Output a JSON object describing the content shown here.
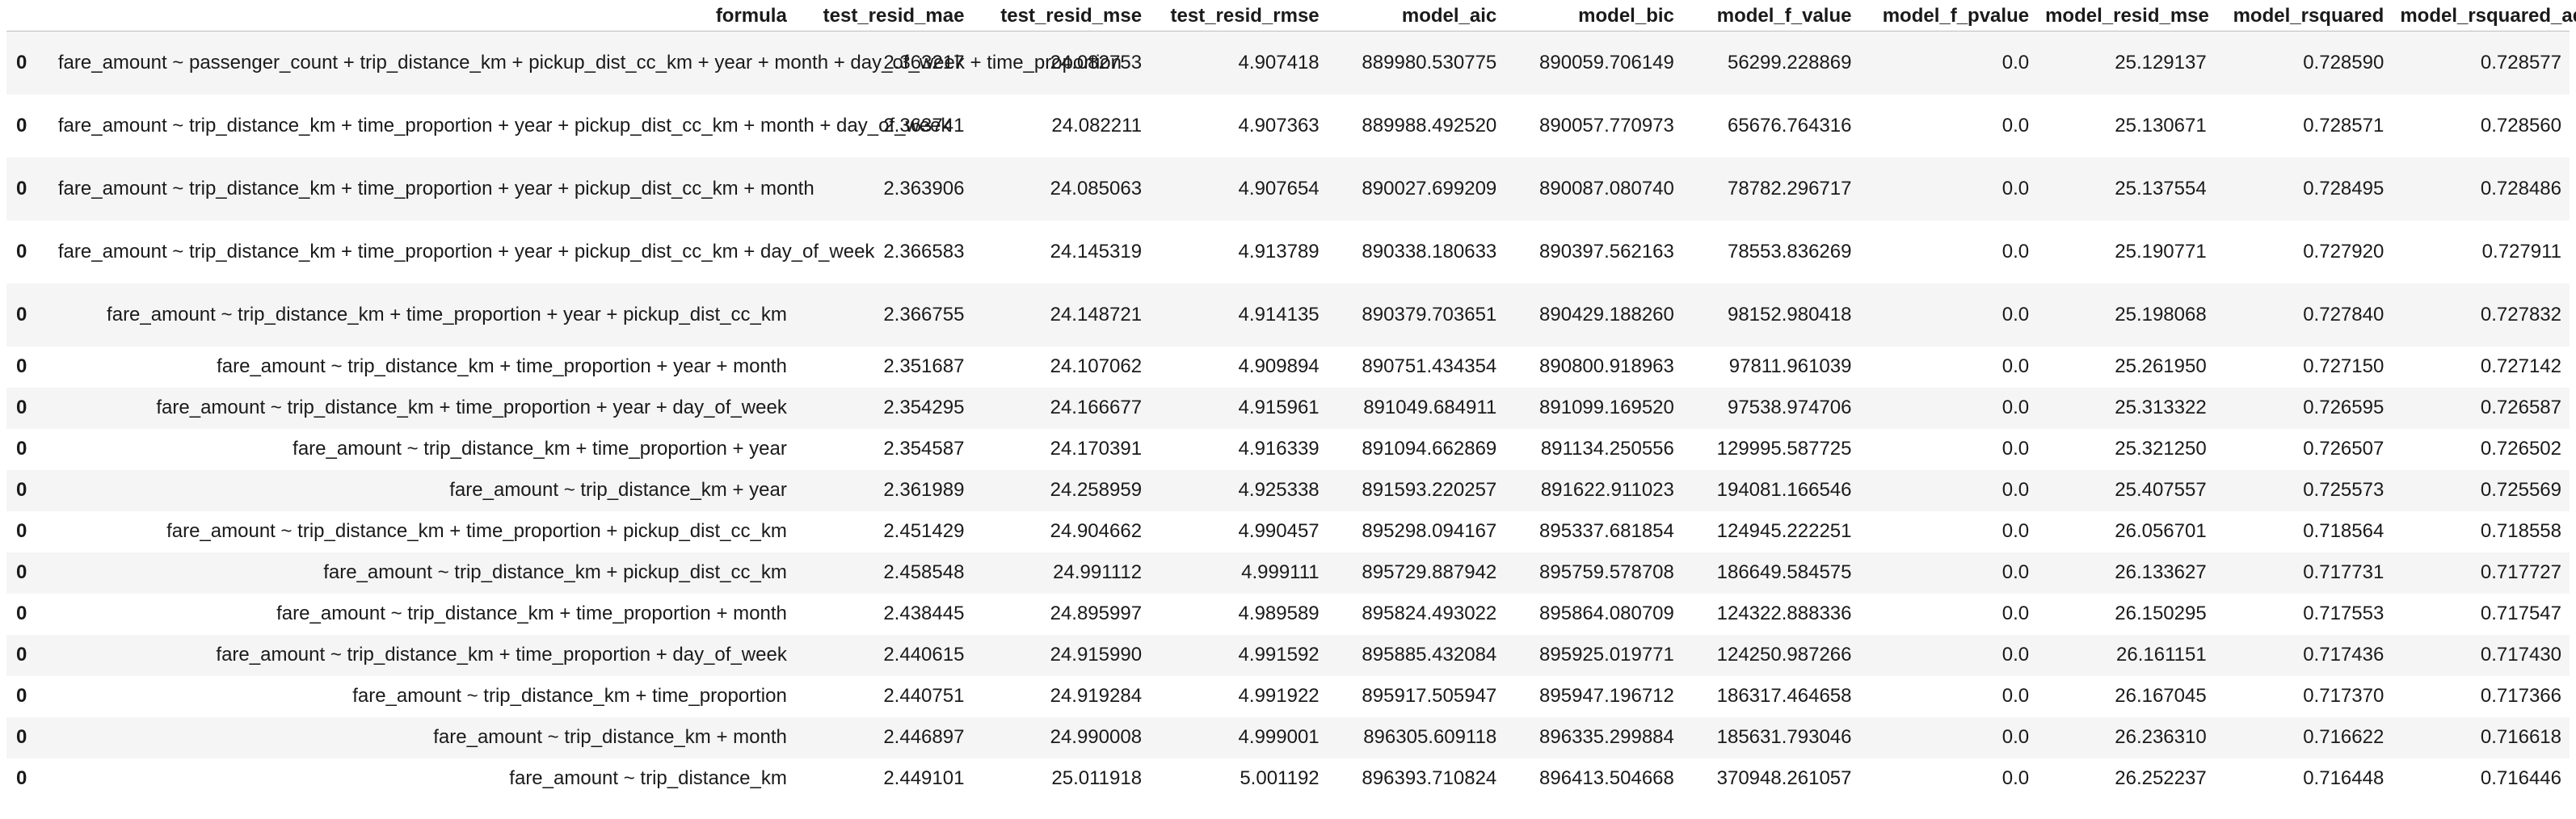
{
  "columns": [
    "",
    "formula",
    "test_resid_mae",
    "test_resid_mse",
    "test_resid_rmse",
    "model_aic",
    "model_bic",
    "model_f_value",
    "model_f_pvalue",
    "model_resid_mse",
    "model_rsquared",
    "model_rsquared_adj"
  ],
  "rows": [
    {
      "index": "0",
      "formula": "fare_amount ~ passenger_count + trip_distance_km + pickup_dist_cc_km + year + month + day_of_week + time_proportion",
      "test_resid_mae": "2.363217",
      "test_resid_mse": "24.082753",
      "test_resid_rmse": "4.907418",
      "model_aic": "889980.530775",
      "model_bic": "890059.706149",
      "model_f_value": "56299.228869",
      "model_f_pvalue": "0.0",
      "model_resid_mse": "25.129137",
      "model_rsquared": "0.728590",
      "model_rsquared_adj": "0.728577"
    },
    {
      "index": "0",
      "formula": "fare_amount ~ trip_distance_km + time_proportion + year + pickup_dist_cc_km + month + day_of_week",
      "test_resid_mae": "2.363741",
      "test_resid_mse": "24.082211",
      "test_resid_rmse": "4.907363",
      "model_aic": "889988.492520",
      "model_bic": "890057.770973",
      "model_f_value": "65676.764316",
      "model_f_pvalue": "0.0",
      "model_resid_mse": "25.130671",
      "model_rsquared": "0.728571",
      "model_rsquared_adj": "0.728560"
    },
    {
      "index": "0",
      "formula": "fare_amount ~ trip_distance_km + time_proportion + year + pickup_dist_cc_km + month",
      "test_resid_mae": "2.363906",
      "test_resid_mse": "24.085063",
      "test_resid_rmse": "4.907654",
      "model_aic": "890027.699209",
      "model_bic": "890087.080740",
      "model_f_value": "78782.296717",
      "model_f_pvalue": "0.0",
      "model_resid_mse": "25.137554",
      "model_rsquared": "0.728495",
      "model_rsquared_adj": "0.728486"
    },
    {
      "index": "0",
      "formula": "fare_amount ~ trip_distance_km + time_proportion + year + pickup_dist_cc_km + day_of_week",
      "test_resid_mae": "2.366583",
      "test_resid_mse": "24.145319",
      "test_resid_rmse": "4.913789",
      "model_aic": "890338.180633",
      "model_bic": "890397.562163",
      "model_f_value": "78553.836269",
      "model_f_pvalue": "0.0",
      "model_resid_mse": "25.190771",
      "model_rsquared": "0.727920",
      "model_rsquared_adj": "0.727911"
    },
    {
      "index": "0",
      "formula": "fare_amount ~ trip_distance_km + time_proportion + year + pickup_dist_cc_km",
      "test_resid_mae": "2.366755",
      "test_resid_mse": "24.148721",
      "test_resid_rmse": "4.914135",
      "model_aic": "890379.703651",
      "model_bic": "890429.188260",
      "model_f_value": "98152.980418",
      "model_f_pvalue": "0.0",
      "model_resid_mse": "25.198068",
      "model_rsquared": "0.727840",
      "model_rsquared_adj": "0.727832"
    },
    {
      "index": "0",
      "formula": "fare_amount ~ trip_distance_km + time_proportion + year + month",
      "test_resid_mae": "2.351687",
      "test_resid_mse": "24.107062",
      "test_resid_rmse": "4.909894",
      "model_aic": "890751.434354",
      "model_bic": "890800.918963",
      "model_f_value": "97811.961039",
      "model_f_pvalue": "0.0",
      "model_resid_mse": "25.261950",
      "model_rsquared": "0.727150",
      "model_rsquared_adj": "0.727142"
    },
    {
      "index": "0",
      "formula": "fare_amount ~ trip_distance_km + time_proportion + year + day_of_week",
      "test_resid_mae": "2.354295",
      "test_resid_mse": "24.166677",
      "test_resid_rmse": "4.915961",
      "model_aic": "891049.684911",
      "model_bic": "891099.169520",
      "model_f_value": "97538.974706",
      "model_f_pvalue": "0.0",
      "model_resid_mse": "25.313322",
      "model_rsquared": "0.726595",
      "model_rsquared_adj": "0.726587"
    },
    {
      "index": "0",
      "formula": "fare_amount ~ trip_distance_km + time_proportion + year",
      "test_resid_mae": "2.354587",
      "test_resid_mse": "24.170391",
      "test_resid_rmse": "4.916339",
      "model_aic": "891094.662869",
      "model_bic": "891134.250556",
      "model_f_value": "129995.587725",
      "model_f_pvalue": "0.0",
      "model_resid_mse": "25.321250",
      "model_rsquared": "0.726507",
      "model_rsquared_adj": "0.726502"
    },
    {
      "index": "0",
      "formula": "fare_amount ~ trip_distance_km + year",
      "test_resid_mae": "2.361989",
      "test_resid_mse": "24.258959",
      "test_resid_rmse": "4.925338",
      "model_aic": "891593.220257",
      "model_bic": "891622.911023",
      "model_f_value": "194081.166546",
      "model_f_pvalue": "0.0",
      "model_resid_mse": "25.407557",
      "model_rsquared": "0.725573",
      "model_rsquared_adj": "0.725569"
    },
    {
      "index": "0",
      "formula": "fare_amount ~ trip_distance_km + time_proportion + pickup_dist_cc_km",
      "test_resid_mae": "2.451429",
      "test_resid_mse": "24.904662",
      "test_resid_rmse": "4.990457",
      "model_aic": "895298.094167",
      "model_bic": "895337.681854",
      "model_f_value": "124945.222251",
      "model_f_pvalue": "0.0",
      "model_resid_mse": "26.056701",
      "model_rsquared": "0.718564",
      "model_rsquared_adj": "0.718558"
    },
    {
      "index": "0",
      "formula": "fare_amount ~ trip_distance_km + pickup_dist_cc_km",
      "test_resid_mae": "2.458548",
      "test_resid_mse": "24.991112",
      "test_resid_rmse": "4.999111",
      "model_aic": "895729.887942",
      "model_bic": "895759.578708",
      "model_f_value": "186649.584575",
      "model_f_pvalue": "0.0",
      "model_resid_mse": "26.133627",
      "model_rsquared": "0.717731",
      "model_rsquared_adj": "0.717727"
    },
    {
      "index": "0",
      "formula": "fare_amount ~ trip_distance_km + time_proportion + month",
      "test_resid_mae": "2.438445",
      "test_resid_mse": "24.895997",
      "test_resid_rmse": "4.989589",
      "model_aic": "895824.493022",
      "model_bic": "895864.080709",
      "model_f_value": "124322.888336",
      "model_f_pvalue": "0.0",
      "model_resid_mse": "26.150295",
      "model_rsquared": "0.717553",
      "model_rsquared_adj": "0.717547"
    },
    {
      "index": "0",
      "formula": "fare_amount ~ trip_distance_km + time_proportion + day_of_week",
      "test_resid_mae": "2.440615",
      "test_resid_mse": "24.915990",
      "test_resid_rmse": "4.991592",
      "model_aic": "895885.432084",
      "model_bic": "895925.019771",
      "model_f_value": "124250.987266",
      "model_f_pvalue": "0.0",
      "model_resid_mse": "26.161151",
      "model_rsquared": "0.717436",
      "model_rsquared_adj": "0.717430"
    },
    {
      "index": "0",
      "formula": "fare_amount ~ trip_distance_km + time_proportion",
      "test_resid_mae": "2.440751",
      "test_resid_mse": "24.919284",
      "test_resid_rmse": "4.991922",
      "model_aic": "895917.505947",
      "model_bic": "895947.196712",
      "model_f_value": "186317.464658",
      "model_f_pvalue": "0.0",
      "model_resid_mse": "26.167045",
      "model_rsquared": "0.717370",
      "model_rsquared_adj": "0.717366"
    },
    {
      "index": "0",
      "formula": "fare_amount ~ trip_distance_km + month",
      "test_resid_mae": "2.446897",
      "test_resid_mse": "24.990008",
      "test_resid_rmse": "4.999001",
      "model_aic": "896305.609118",
      "model_bic": "896335.299884",
      "model_f_value": "185631.793046",
      "model_f_pvalue": "0.0",
      "model_resid_mse": "26.236310",
      "model_rsquared": "0.716622",
      "model_rsquared_adj": "0.716618"
    },
    {
      "index": "0",
      "formula": "fare_amount ~ trip_distance_km",
      "test_resid_mae": "2.449101",
      "test_resid_mse": "25.011918",
      "test_resid_rmse": "5.001192",
      "model_aic": "896393.710824",
      "model_bic": "896413.504668",
      "model_f_value": "370948.261057",
      "model_f_pvalue": "0.0",
      "model_resid_mse": "26.252237",
      "model_rsquared": "0.716448",
      "model_rsquared_adj": "0.716446"
    }
  ]
}
